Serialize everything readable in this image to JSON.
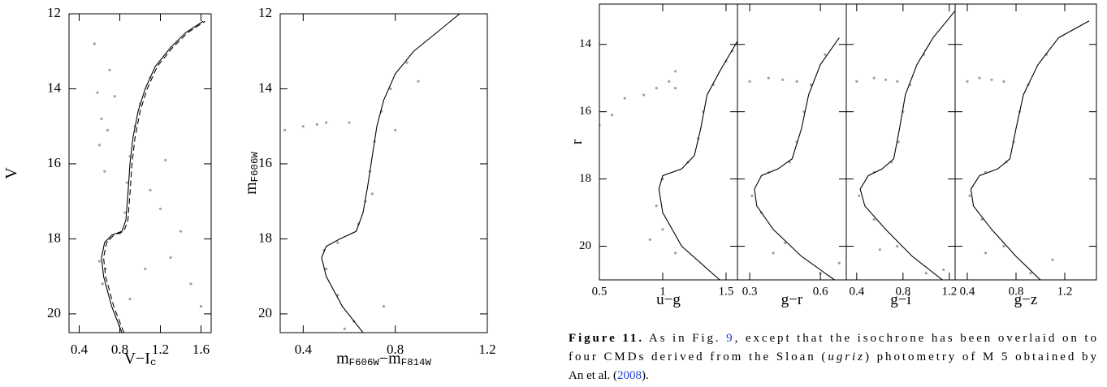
{
  "chart_data": [
    {
      "type": "scatter",
      "ylabel": [
        {
          "text": "V"
        }
      ],
      "xlabel": [
        {
          "text": "V−I"
        },
        {
          "text": "c",
          "sub": true
        }
      ],
      "xlim": [
        0.3,
        1.7
      ],
      "xticks": [
        0.4,
        0.8,
        1.2,
        1.6
      ],
      "ylim": [
        12,
        20.5
      ],
      "yticks": [
        12,
        14,
        16,
        18,
        20
      ],
      "invert_y": true,
      "ytick_labels": true,
      "series": [
        {
          "type": "scatter",
          "color": "#a0a0a0",
          "x": [
            0.63,
            0.66,
            0.6,
            0.7,
            0.8,
            0.85,
            0.87,
            0.9,
            0.95,
            1.0,
            1.1,
            0.6,
            0.62,
            0.65,
            0.7,
            1.1,
            1.3,
            1.5,
            1.2,
            0.55,
            1.6,
            0.75,
            1.05,
            0.9,
            1.4,
            0.68,
            1.25,
            0.58
          ],
          "values": [
            19.2,
            18.8,
            18.6,
            18.0,
            17.85,
            17.3,
            16.5,
            15.8,
            15.0,
            14.4,
            13.7,
            15.5,
            14.8,
            16.2,
            13.5,
            16.7,
            18.5,
            19.2,
            17.2,
            12.8,
            19.8,
            14.2,
            18.8,
            19.6,
            17.8,
            15.1,
            15.9,
            14.1
          ]
        },
        {
          "type": "line",
          "color": "#000000",
          "style": "solid",
          "x": [
            0.82,
            0.72,
            0.64,
            0.62,
            0.65,
            0.72,
            0.82,
            0.86,
            0.88,
            0.9,
            0.93,
            0.98,
            1.05,
            1.15,
            1.3,
            1.45,
            1.62
          ],
          "values": [
            20.5,
            19.8,
            19.0,
            18.5,
            18.1,
            17.9,
            17.8,
            17.5,
            16.8,
            16.0,
            15.3,
            14.6,
            14.0,
            13.4,
            12.9,
            12.5,
            12.2
          ]
        },
        {
          "type": "line",
          "color": "#000000",
          "style": "dashed",
          "x": [
            0.84,
            0.74,
            0.66,
            0.64,
            0.67,
            0.74,
            0.84,
            0.88,
            0.9,
            0.92,
            0.95,
            1.0,
            1.07,
            1.17,
            1.32,
            1.47,
            1.64
          ],
          "values": [
            20.5,
            19.8,
            19.0,
            18.5,
            18.1,
            17.9,
            17.8,
            17.5,
            16.8,
            16.0,
            15.3,
            14.6,
            14.0,
            13.4,
            12.9,
            12.5,
            12.2
          ]
        }
      ]
    },
    {
      "type": "scatter",
      "ylabel": [
        {
          "text": "m"
        },
        {
          "text": "F606W",
          "sub": true
        }
      ],
      "xlabel": [
        {
          "text": "m"
        },
        {
          "text": "F606W",
          "sub": true
        },
        {
          "text": "−m"
        },
        {
          "text": "F814W",
          "sub": true
        }
      ],
      "xlim": [
        0.3,
        1.2
      ],
      "xticks": [
        0.4,
        0.8,
        1.2
      ],
      "ylim": [
        12,
        20.5
      ],
      "yticks": [
        12,
        14,
        16,
        18,
        20
      ],
      "invert_y": true,
      "ytick_labels": true,
      "series": [
        {
          "type": "scatter",
          "color": "#a0a0a0",
          "x": [
            0.62,
            0.55,
            0.5,
            0.49,
            0.55,
            0.64,
            0.67,
            0.69,
            0.71,
            0.74,
            0.78,
            0.85,
            0.32,
            0.4,
            0.46,
            0.5,
            0.8,
            0.6,
            0.58,
            0.75,
            0.7,
            0.9
          ],
          "values": [
            20.2,
            19.5,
            18.8,
            18.3,
            18.1,
            17.6,
            17.0,
            16.2,
            15.4,
            14.6,
            14.0,
            13.3,
            15.1,
            15.0,
            14.95,
            14.9,
            15.1,
            14.9,
            20.4,
            19.8,
            16.8,
            13.8
          ]
        },
        {
          "type": "line",
          "color": "#000000",
          "style": "solid",
          "x": [
            0.66,
            0.57,
            0.5,
            0.48,
            0.5,
            0.56,
            0.63,
            0.66,
            0.68,
            0.7,
            0.72,
            0.75,
            0.8,
            0.88,
            0.98,
            1.08
          ],
          "values": [
            20.5,
            19.8,
            19.0,
            18.5,
            18.2,
            18.0,
            17.8,
            17.3,
            16.6,
            15.8,
            15.0,
            14.3,
            13.6,
            13.0,
            12.5,
            12.0
          ]
        }
      ]
    },
    {
      "type": "scatter",
      "ylabel": [
        {
          "text": "r"
        }
      ],
      "xlabel": [
        {
          "text": "u−g"
        }
      ],
      "xlim": [
        0.5,
        1.59
      ],
      "xticks": [
        0.5,
        1,
        1.5
      ],
      "ylim": [
        12.8,
        21
      ],
      "yticks": [
        14,
        16,
        18,
        20
      ],
      "invert_y": true,
      "ytick_labels": true,
      "series": [
        {
          "type": "scatter",
          "color": "#a0a0a0",
          "x": [
            1.0,
            0.95,
            1.0,
            1.2,
            1.28,
            1.32,
            1.4,
            1.5,
            1.05,
            1.1,
            0.95,
            0.7,
            0.6,
            0.5,
            0.85,
            1.1,
            0.9,
            1.1,
            1.55
          ],
          "values": [
            19.5,
            18.8,
            18.0,
            17.5,
            16.8,
            16.0,
            15.2,
            14.5,
            15.1,
            14.8,
            15.3,
            15.6,
            16.1,
            16.4,
            15.5,
            20.2,
            19.8,
            15.3,
            14.2
          ]
        },
        {
          "type": "line",
          "color": "#000000",
          "style": "solid",
          "x": [
            1.45,
            1.15,
            1.0,
            0.97,
            1.0,
            1.15,
            1.25,
            1.3,
            1.35,
            1.45,
            1.59
          ],
          "values": [
            21,
            20,
            19,
            18.3,
            17.9,
            17.7,
            17.3,
            16.5,
            15.5,
            14.8,
            13.9
          ]
        }
      ]
    },
    {
      "type": "scatter",
      "xlabel": [
        {
          "text": "g−r"
        }
      ],
      "xlim": [
        0.248,
        0.71
      ],
      "xticks": [
        0.3,
        0.6
      ],
      "ylim": [
        12.8,
        21
      ],
      "yticks": [
        14,
        16,
        18,
        20
      ],
      "invert_y": true,
      "ytick_labels": false,
      "series": [
        {
          "type": "scatter",
          "color": "#a0a0a0",
          "x": [
            0.6,
            0.45,
            0.35,
            0.31,
            0.38,
            0.47,
            0.5,
            0.53,
            0.56,
            0.62,
            0.3,
            0.38,
            0.44,
            0.5,
            0.68,
            0.4
          ],
          "values": [
            20.8,
            19.9,
            19.0,
            18.5,
            17.8,
            17.5,
            16.9,
            16.0,
            15.2,
            14.3,
            15.1,
            15.0,
            15.05,
            15.1,
            20.5,
            20.2
          ]
        },
        {
          "type": "line",
          "color": "#000000",
          "style": "solid",
          "x": [
            0.66,
            0.52,
            0.4,
            0.33,
            0.32,
            0.35,
            0.42,
            0.48,
            0.52,
            0.55,
            0.6,
            0.68
          ],
          "values": [
            21,
            20.3,
            19.5,
            18.8,
            18.3,
            17.9,
            17.7,
            17.4,
            16.5,
            15.5,
            14.6,
            13.8
          ]
        }
      ]
    },
    {
      "type": "scatter",
      "xlabel": [
        {
          "text": "g−i"
        }
      ],
      "xlim": [
        0.31,
        1.25
      ],
      "xticks": [
        0.4,
        0.8,
        1.2
      ],
      "ylim": [
        12.8,
        21
      ],
      "yticks": [
        14,
        16,
        18,
        20
      ],
      "invert_y": true,
      "ytick_labels": false,
      "series": [
        {
          "type": "scatter",
          "color": "#a0a0a0",
          "x": [
            1.0,
            0.75,
            0.55,
            0.42,
            0.55,
            0.7,
            0.76,
            0.8,
            0.86,
            0.98,
            0.4,
            0.55,
            0.65,
            0.75,
            1.15,
            0.6
          ],
          "values": [
            20.8,
            20.0,
            19.2,
            18.5,
            17.8,
            17.5,
            16.9,
            16.0,
            15.2,
            14.3,
            15.1,
            15.0,
            15.05,
            15.1,
            20.7,
            20.1
          ]
        },
        {
          "type": "line",
          "color": "#000000",
          "style": "solid",
          "x": [
            1.14,
            0.88,
            0.65,
            0.47,
            0.43,
            0.5,
            0.62,
            0.72,
            0.77,
            0.82,
            0.92,
            1.06,
            1.25
          ],
          "values": [
            21,
            20.3,
            19.5,
            18.8,
            18.3,
            17.9,
            17.7,
            17.4,
            16.5,
            15.5,
            14.6,
            13.8,
            13.0
          ]
        }
      ]
    },
    {
      "type": "scatter",
      "xlabel": [
        {
          "text": "g−z"
        }
      ],
      "xlim": [
        0.3,
        1.46
      ],
      "xticks": [
        0.4,
        0.8,
        1.2
      ],
      "ylim": [
        12.8,
        21
      ],
      "yticks": [
        14,
        16,
        18,
        20
      ],
      "invert_y": true,
      "ytick_labels": false,
      "series": [
        {
          "type": "scatter",
          "color": "#a0a0a0",
          "x": [
            0.92,
            0.7,
            0.52,
            0.42,
            0.55,
            0.72,
            0.78,
            0.83,
            0.9,
            1.05,
            0.4,
            0.5,
            0.6,
            0.7,
            1.1,
            0.55
          ],
          "values": [
            20.8,
            20.0,
            19.2,
            18.5,
            17.8,
            17.5,
            16.9,
            16.0,
            15.2,
            14.3,
            15.1,
            15.0,
            15.05,
            15.1,
            20.4,
            20.2
          ]
        },
        {
          "type": "line",
          "color": "#000000",
          "style": "solid",
          "x": [
            1.0,
            0.8,
            0.6,
            0.45,
            0.43,
            0.5,
            0.65,
            0.75,
            0.8,
            0.86,
            0.98,
            1.15,
            1.4
          ],
          "values": [
            21,
            20.3,
            19.5,
            18.8,
            18.3,
            17.9,
            17.7,
            17.4,
            16.5,
            15.5,
            14.6,
            13.8,
            13.3
          ]
        }
      ]
    }
  ],
  "caption": {
    "lines": [
      [
        {
          "text": "Figure 11.",
          "style": "bold"
        },
        {
          "text": " As in Fig. "
        },
        {
          "text": "9",
          "style": "link"
        },
        {
          "text": ", except that the isochrone has been overlaid on to"
        }
      ],
      [
        {
          "text": "four CMDs derived from the Sloan ("
        },
        {
          "text": "ugriz",
          "style": "italic"
        },
        {
          "text": ") photometry of M 5 obtained by"
        }
      ],
      [
        {
          "text": "An et al. ("
        },
        {
          "text": "2008",
          "style": "link"
        },
        {
          "text": ")."
        }
      ]
    ]
  }
}
